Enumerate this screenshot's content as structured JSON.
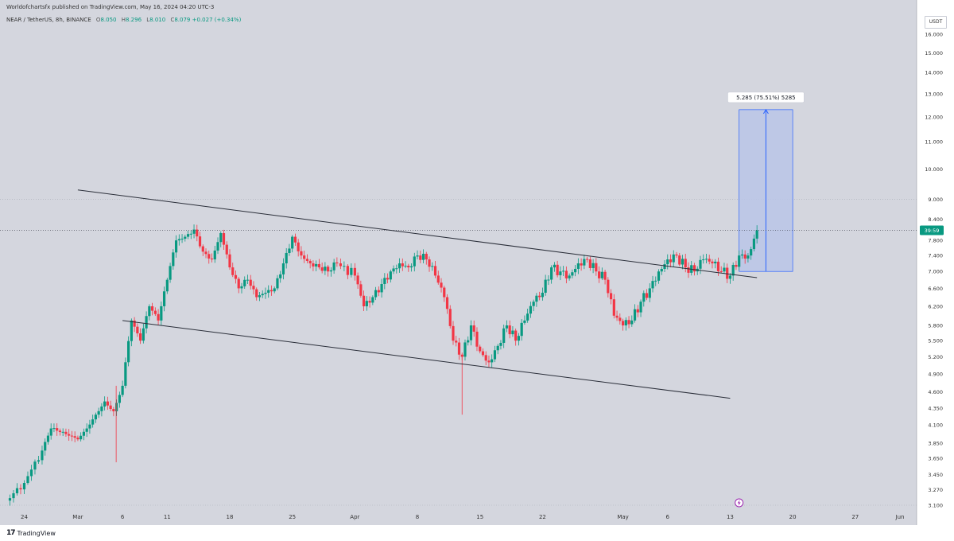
{
  "header": {
    "published": "Worldofchartsfx published on TradingView.com, May 16, 2024 04:20 UTC-3",
    "symbol": "NEAR / TetherUS, 8h, BINANCE",
    "open_label": "O",
    "open": "8.050",
    "high_label": "H",
    "high": "8.296",
    "low_label": "L",
    "low": "8.010",
    "close_label": "C",
    "close": "8.079",
    "change": "+0.027 (+0.34%)"
  },
  "currency": "USDT",
  "footer": {
    "logo_mark": "17",
    "logo_text": "TradingView"
  },
  "colors": {
    "background": "#d4d6de",
    "bull": "#089981",
    "bear": "#f23645",
    "box_fill": "#bac6e7",
    "box_stroke": "#2962ff",
    "lines": "#2a2e39"
  },
  "chart_data": {
    "type": "candlestick",
    "title": "NEAR / TetherUS, 8h, BINANCE",
    "scale": "log",
    "ylim": [
      3.1,
      16.0
    ],
    "y_ticks": [
      "16.000",
      "15.000",
      "14.000",
      "13.000",
      "12.000",
      "11.000",
      "10.000",
      "9.000",
      "8.400",
      "7.800",
      "7.400",
      "7.000",
      "6.600",
      "6.200",
      "5.800",
      "5.500",
      "5.200",
      "4.900",
      "4.600",
      "4.350",
      "4.100",
      "3.850",
      "3.650",
      "3.450",
      "3.270",
      "3.100"
    ],
    "x_ticks": [
      {
        "date": "2024-02-24",
        "label": "24"
      },
      {
        "date": "2024-03-01",
        "label": "Mar"
      },
      {
        "date": "2024-03-06",
        "label": "6"
      },
      {
        "date": "2024-03-11",
        "label": "11"
      },
      {
        "date": "2024-03-18",
        "label": "18"
      },
      {
        "date": "2024-03-25",
        "label": "25"
      },
      {
        "date": "2024-04-01",
        "label": "Apr"
      },
      {
        "date": "2024-04-08",
        "label": "8"
      },
      {
        "date": "2024-04-15",
        "label": "15"
      },
      {
        "date": "2024-04-22",
        "label": "22"
      },
      {
        "date": "2024-05-01",
        "label": "May"
      },
      {
        "date": "2024-05-06",
        "label": "6"
      },
      {
        "date": "2024-05-13",
        "label": "13"
      },
      {
        "date": "2024-05-20",
        "label": "20"
      },
      {
        "date": "2024-05-27",
        "label": "27"
      },
      {
        "date": "2024-06-01",
        "label": "Jun"
      }
    ],
    "xlim": [
      "2024-02-22",
      "2024-06-01"
    ],
    "close_series": [
      [
        "2024-02-22",
        3.15
      ],
      [
        "2024-02-24",
        3.35
      ],
      [
        "2024-02-26",
        3.75
      ],
      [
        "2024-02-27",
        4.05
      ],
      [
        "2024-02-28",
        4.0
      ],
      [
        "2024-02-29",
        3.95
      ],
      [
        "2024-03-01",
        3.9
      ],
      [
        "2024-03-02",
        4.05
      ],
      [
        "2024-03-03",
        4.25
      ],
      [
        "2024-03-04",
        4.45
      ],
      [
        "2024-03-05",
        4.3
      ],
      [
        "2024-03-06",
        4.7
      ],
      [
        "2024-03-07",
        5.9
      ],
      [
        "2024-03-08",
        5.5
      ],
      [
        "2024-03-09",
        6.2
      ],
      [
        "2024-03-10",
        5.9
      ],
      [
        "2024-03-11",
        6.8
      ],
      [
        "2024-03-12",
        7.8
      ],
      [
        "2024-03-13",
        7.9
      ],
      [
        "2024-03-14",
        8.1
      ],
      [
        "2024-03-15",
        7.5
      ],
      [
        "2024-03-16",
        7.3
      ],
      [
        "2024-03-17",
        8.0
      ],
      [
        "2024-03-18",
        7.1
      ],
      [
        "2024-03-19",
        6.6
      ],
      [
        "2024-03-20",
        6.8
      ],
      [
        "2024-03-21",
        6.4
      ],
      [
        "2024-03-22",
        6.5
      ],
      [
        "2024-03-23",
        6.6
      ],
      [
        "2024-03-24",
        7.2
      ],
      [
        "2024-03-25",
        7.9
      ],
      [
        "2024-03-26",
        7.4
      ],
      [
        "2024-03-27",
        7.2
      ],
      [
        "2024-03-28",
        7.1
      ],
      [
        "2024-03-29",
        7.0
      ],
      [
        "2024-03-30",
        7.2
      ],
      [
        "2024-04-01",
        6.9
      ],
      [
        "2024-04-02",
        6.2
      ],
      [
        "2024-04-03",
        6.4
      ],
      [
        "2024-04-04",
        6.7
      ],
      [
        "2024-04-05",
        7.0
      ],
      [
        "2024-04-06",
        7.2
      ],
      [
        "2024-04-07",
        7.1
      ],
      [
        "2024-04-08",
        7.4
      ],
      [
        "2024-04-09",
        7.3
      ],
      [
        "2024-04-10",
        6.9
      ],
      [
        "2024-04-11",
        6.4
      ],
      [
        "2024-04-12",
        5.5
      ],
      [
        "2024-04-13",
        5.2
      ],
      [
        "2024-04-14",
        5.8
      ],
      [
        "2024-04-15",
        5.3
      ],
      [
        "2024-04-16",
        5.1
      ],
      [
        "2024-04-17",
        5.4
      ],
      [
        "2024-04-18",
        5.8
      ],
      [
        "2024-04-19",
        5.5
      ],
      [
        "2024-04-20",
        5.9
      ],
      [
        "2024-04-21",
        6.3
      ],
      [
        "2024-04-22",
        6.5
      ],
      [
        "2024-04-23",
        7.1
      ],
      [
        "2024-04-24",
        7.0
      ],
      [
        "2024-04-25",
        6.9
      ],
      [
        "2024-04-26",
        7.2
      ],
      [
        "2024-04-27",
        7.3
      ],
      [
        "2024-04-28",
        7.0
      ],
      [
        "2024-04-29",
        6.8
      ],
      [
        "2024-04-30",
        6.0
      ],
      [
        "2024-05-01",
        5.8
      ],
      [
        "2024-05-02",
        5.9
      ],
      [
        "2024-05-03",
        6.3
      ],
      [
        "2024-05-04",
        6.6
      ],
      [
        "2024-05-05",
        7.0
      ],
      [
        "2024-05-06",
        7.3
      ],
      [
        "2024-05-07",
        7.4
      ],
      [
        "2024-05-08",
        7.1
      ],
      [
        "2024-05-09",
        7.0
      ],
      [
        "2024-05-10",
        7.3
      ],
      [
        "2024-05-11",
        7.2
      ],
      [
        "2024-05-12",
        7.0
      ],
      [
        "2024-05-13",
        6.9
      ],
      [
        "2024-05-14",
        7.4
      ],
      [
        "2024-05-15",
        7.4
      ],
      [
        "2024-05-16",
        8.079
      ]
    ],
    "trendlines": [
      {
        "from": [
          "2024-03-01",
          9.3
        ],
        "to": [
          "2024-05-16",
          6.85
        ]
      },
      {
        "from": [
          "2024-03-06",
          5.9
        ],
        "to": [
          "2024-05-13",
          4.5
        ]
      }
    ],
    "projection": {
      "start": "2024-05-14",
      "end": "2024-05-20",
      "from_price": 7.0,
      "to_price": 12.3,
      "label": "5.285 (75.51%) 5285"
    },
    "current_price_label": "39:59",
    "current_price": 8.079
  }
}
